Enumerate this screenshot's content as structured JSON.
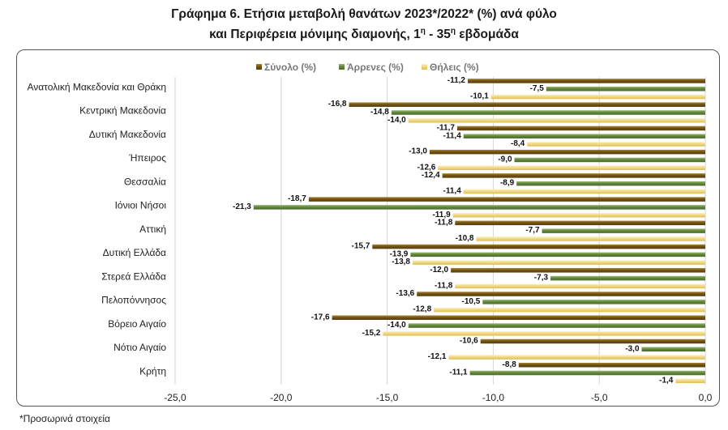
{
  "title_line1": "Γράφημα 6. Ετήσια μεταβολή θανάτων 2023*/2022* (%) ανά φύλο",
  "title_line2_prefix": "και Περιφέρεια μόνιμης διαμονής, 1",
  "title_line2_sup1": "η",
  "title_line2_mid": " - 35",
  "title_line2_sup2": "η",
  "title_line2_suffix": " εβδομάδα",
  "footnote": "*Προσωρινά στοιχεία",
  "chart_data": {
    "type": "bar",
    "orientation": "horizontal",
    "categories": [
      "Ανατολική Μακεδονία και Θράκη",
      "Κεντρική Μακεδονία",
      "Δυτική Μακεδονία",
      "Ήπειρος",
      "Θεσσαλία",
      "Ιόνιοι Νήσοι",
      "Αττική",
      "Δυτική Ελλάδα",
      "Στερεά Ελλάδα",
      "Πελοπόννησος",
      "Βόρειο Αιγαίο",
      "Νότιο Αιγαίο",
      "Κρήτη"
    ],
    "series": [
      {
        "name": "Σύνολο (%)",
        "color": "#7a5a19",
        "values": [
          -11.2,
          -16.8,
          -11.7,
          -13.0,
          -12.4,
          -18.7,
          -11.8,
          -15.7,
          -12.0,
          -13.6,
          -17.6,
          -10.6,
          -8.8
        ]
      },
      {
        "name": "Άρρενες (%)",
        "color": "#6a8e45",
        "values": [
          -7.5,
          -14.8,
          -11.4,
          -9.0,
          -8.9,
          -21.3,
          -7.7,
          -13.9,
          -7.3,
          -10.5,
          -14.0,
          -3.0,
          -11.1
        ]
      },
      {
        "name": "Θήλεις (%)",
        "color": "#f2dc8c",
        "values": [
          -10.1,
          -14.0,
          -8.4,
          -12.6,
          -11.4,
          -11.9,
          -10.8,
          -13.8,
          -11.8,
          -12.8,
          -15.2,
          -12.1,
          -1.4
        ]
      }
    ],
    "xlim": [
      -25.0,
      0.0
    ],
    "xticks": [
      "-25,0",
      "-20,0",
      "-15,0",
      "-10,0",
      "-5,0",
      "0,0"
    ],
    "tick_values": [
      -25,
      -20,
      -15,
      -10,
      -5,
      0
    ],
    "grid": "vertical",
    "legend_position": "top-center"
  }
}
